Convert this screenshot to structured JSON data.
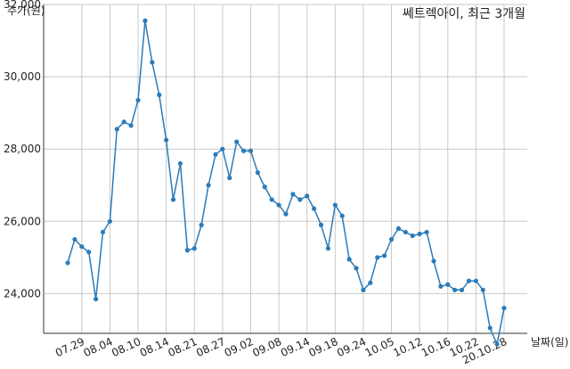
{
  "chart_data": {
    "type": "line",
    "title": "쎄트렉아이, 최근 3개월",
    "ylabel": "주가(원)",
    "xlabel": "날짜(일)",
    "ylim": [
      22900,
      32000
    ],
    "yticks": [
      24000,
      26000,
      28000,
      30000,
      32000
    ],
    "ytick_labels": [
      "24,000",
      "26,000",
      "28,000",
      "30,000",
      "32,000"
    ],
    "xtick_labels": [
      "07.29",
      "08.04",
      "08.10",
      "08.14",
      "08.21",
      "08.27",
      "09.02",
      "09.08",
      "09.14",
      "09.18",
      "09.24",
      "10.05",
      "10.12",
      "10.16",
      "10.22",
      "20.10.28"
    ],
    "xtick_positions": [
      2,
      6,
      10,
      14,
      18,
      22,
      26,
      30,
      34,
      38,
      42,
      46,
      50,
      54,
      58,
      62
    ],
    "grid": true,
    "color": "#2b7bb9",
    "series": [
      {
        "name": "",
        "values": [
          24850,
          25500,
          25300,
          25150,
          23850,
          25700,
          26000,
          28550,
          28750,
          28650,
          29350,
          31550,
          30400,
          29500,
          28250,
          26600,
          27600,
          25200,
          25250,
          25900,
          27000,
          27850,
          28000,
          27200,
          28200,
          27950,
          27950,
          27350,
          26950,
          26600,
          26450,
          26200,
          26750,
          26600,
          26700,
          26350,
          25900,
          25250,
          26450,
          26150,
          24950,
          24700,
          24100,
          24300,
          25000,
          25050,
          25500,
          25800,
          25700,
          25600,
          25650,
          25700,
          24900,
          24200,
          24250,
          24100,
          24100,
          24350,
          24350,
          24100,
          23050,
          22600,
          23600
        ]
      }
    ]
  }
}
